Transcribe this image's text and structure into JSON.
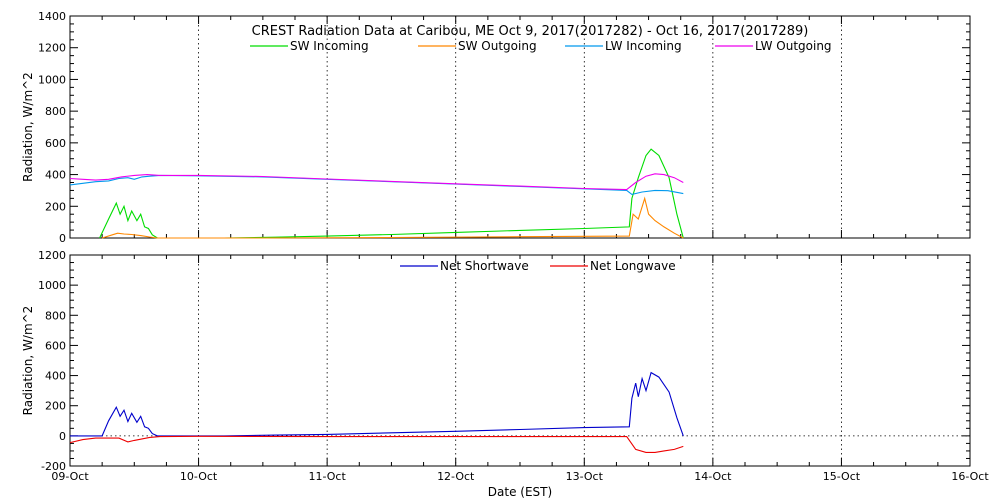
{
  "chart_data": [
    {
      "type": "line",
      "title": "CREST Radiation Data at Caribou, ME   Oct  9, 2017(2017282) - Oct 16, 2017(2017289)",
      "ylabel": "Radiation, W/m^2",
      "xlim": [
        "09-Oct",
        "16-Oct"
      ],
      "ylim": [
        0,
        1400
      ],
      "yticks": [
        0,
        200,
        400,
        600,
        800,
        1000,
        1200,
        1400
      ],
      "grid": true,
      "legend": "top",
      "series": [
        {
          "name": "SW Incoming",
          "color": "#00dd00",
          "points": [
            [
              0.23,
              0
            ],
            [
              0.3,
              120
            ],
            [
              0.36,
              220
            ],
            [
              0.39,
              150
            ],
            [
              0.42,
              200
            ],
            [
              0.45,
              110
            ],
            [
              0.48,
              170
            ],
            [
              0.52,
              110
            ],
            [
              0.55,
              150
            ],
            [
              0.58,
              70
            ],
            [
              0.61,
              60
            ],
            [
              0.64,
              20
            ],
            [
              0.68,
              0
            ],
            [
              1.2,
              0
            ],
            [
              1.6,
              5
            ],
            [
              2.0,
              12
            ],
            [
              2.5,
              22
            ],
            [
              3.0,
              35
            ],
            [
              3.5,
              48
            ],
            [
              4.0,
              60
            ],
            [
              4.35,
              70
            ],
            [
              4.37,
              250
            ],
            [
              4.42,
              380
            ],
            [
              4.48,
              520
            ],
            [
              4.52,
              560
            ],
            [
              4.58,
              520
            ],
            [
              4.66,
              380
            ],
            [
              4.72,
              150
            ],
            [
              4.77,
              0
            ]
          ]
        },
        {
          "name": "SW Outgoing",
          "color": "#ff8800",
          "points": [
            [
              0.25,
              0
            ],
            [
              0.33,
              20
            ],
            [
              0.37,
              30
            ],
            [
              0.42,
              25
            ],
            [
              0.48,
              22
            ],
            [
              0.55,
              15
            ],
            [
              0.62,
              6
            ],
            [
              0.68,
              0
            ],
            [
              1.5,
              0
            ],
            [
              2.5,
              3
            ],
            [
              3.5,
              8
            ],
            [
              4.35,
              12
            ],
            [
              4.38,
              150
            ],
            [
              4.42,
              120
            ],
            [
              4.47,
              250
            ],
            [
              4.5,
              150
            ],
            [
              4.55,
              110
            ],
            [
              4.62,
              70
            ],
            [
              4.7,
              30
            ],
            [
              4.77,
              0
            ]
          ]
        },
        {
          "name": "LW Incoming",
          "color": "#0099ee",
          "points": [
            [
              0,
              335
            ],
            [
              0.1,
              345
            ],
            [
              0.2,
              355
            ],
            [
              0.3,
              360
            ],
            [
              0.38,
              375
            ],
            [
              0.45,
              380
            ],
            [
              0.5,
              370
            ],
            [
              0.56,
              385
            ],
            [
              0.62,
              390
            ],
            [
              0.7,
              395
            ],
            [
              1.0,
              392
            ],
            [
              1.5,
              385
            ],
            [
              2.0,
              370
            ],
            [
              2.5,
              355
            ],
            [
              3.0,
              340
            ],
            [
              3.5,
              325
            ],
            [
              4.0,
              310
            ],
            [
              4.33,
              300
            ],
            [
              4.37,
              275
            ],
            [
              4.45,
              290
            ],
            [
              4.55,
              300
            ],
            [
              4.65,
              298
            ],
            [
              4.77,
              280
            ]
          ]
        },
        {
          "name": "LW Outgoing",
          "color": "#ee00ee",
          "points": [
            [
              0,
              375
            ],
            [
              0.1,
              370
            ],
            [
              0.2,
              365
            ],
            [
              0.3,
              370
            ],
            [
              0.4,
              385
            ],
            [
              0.5,
              395
            ],
            [
              0.6,
              400
            ],
            [
              0.7,
              395
            ],
            [
              1.0,
              395
            ],
            [
              1.5,
              388
            ],
            [
              2.0,
              372
            ],
            [
              2.5,
              357
            ],
            [
              3.0,
              342
            ],
            [
              3.5,
              327
            ],
            [
              4.0,
              312
            ],
            [
              4.33,
              305
            ],
            [
              4.4,
              350
            ],
            [
              4.48,
              390
            ],
            [
              4.55,
              405
            ],
            [
              4.62,
              400
            ],
            [
              4.7,
              380
            ],
            [
              4.77,
              350
            ]
          ]
        }
      ]
    },
    {
      "type": "line",
      "xlabel": "Date (EST)",
      "ylabel": "Radiation, W/m^2",
      "xlim": [
        "09-Oct",
        "16-Oct"
      ],
      "ylim": [
        -200,
        1200
      ],
      "yticks": [
        -200,
        0,
        200,
        400,
        600,
        800,
        1000,
        1200
      ],
      "xticks": [
        "09-Oct",
        "10-Oct",
        "11-Oct",
        "12-Oct",
        "13-Oct",
        "14-Oct",
        "15-Oct",
        "16-Oct"
      ],
      "grid": true,
      "legend": "top",
      "series": [
        {
          "name": "Net Shortwave",
          "color": "#0000cc",
          "points": [
            [
              0,
              0
            ],
            [
              0.25,
              0
            ],
            [
              0.3,
              100
            ],
            [
              0.36,
              190
            ],
            [
              0.39,
              130
            ],
            [
              0.42,
              170
            ],
            [
              0.45,
              95
            ],
            [
              0.48,
              150
            ],
            [
              0.52,
              90
            ],
            [
              0.55,
              130
            ],
            [
              0.58,
              60
            ],
            [
              0.61,
              50
            ],
            [
              0.64,
              15
            ],
            [
              0.68,
              0
            ],
            [
              1.2,
              0
            ],
            [
              1.6,
              5
            ],
            [
              2.0,
              10
            ],
            [
              2.5,
              20
            ],
            [
              3.0,
              30
            ],
            [
              3.5,
              42
            ],
            [
              4.0,
              55
            ],
            [
              4.35,
              60
            ],
            [
              4.37,
              250
            ],
            [
              4.4,
              350
            ],
            [
              4.42,
              260
            ],
            [
              4.45,
              380
            ],
            [
              4.48,
              300
            ],
            [
              4.52,
              420
            ],
            [
              4.58,
              390
            ],
            [
              4.66,
              290
            ],
            [
              4.72,
              120
            ],
            [
              4.77,
              0
            ]
          ]
        },
        {
          "name": "Net Longwave",
          "color": "#ee0000",
          "points": [
            [
              0,
              -45
            ],
            [
              0.1,
              -25
            ],
            [
              0.2,
              -15
            ],
            [
              0.3,
              -15
            ],
            [
              0.38,
              -15
            ],
            [
              0.45,
              -40
            ],
            [
              0.5,
              -30
            ],
            [
              0.56,
              -20
            ],
            [
              0.62,
              -10
            ],
            [
              0.7,
              -5
            ],
            [
              1.0,
              -3
            ],
            [
              2.0,
              -5
            ],
            [
              3.0,
              -5
            ],
            [
              4.0,
              -5
            ],
            [
              4.33,
              -5
            ],
            [
              4.4,
              -90
            ],
            [
              4.48,
              -110
            ],
            [
              4.55,
              -110
            ],
            [
              4.62,
              -100
            ],
            [
              4.7,
              -90
            ],
            [
              4.77,
              -70
            ]
          ]
        }
      ]
    }
  ]
}
